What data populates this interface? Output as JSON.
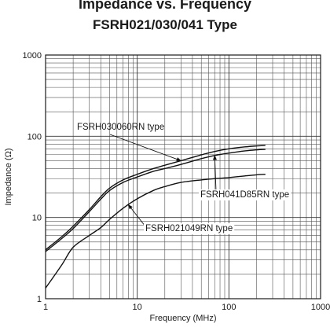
{
  "chart_data": {
    "type": "line",
    "title": "Impedance vs. Frequency",
    "subtitle": "FSRH021/030/041 Type",
    "xlabel": "Frequency (MHz)",
    "ylabel": "Impedance (Ω)",
    "x_scale": "log",
    "y_scale": "log",
    "xlim": [
      1,
      1000
    ],
    "ylim": [
      1,
      1000
    ],
    "x_ticks": [
      "1",
      "10",
      "100",
      "1000"
    ],
    "y_ticks": [
      "1",
      "10",
      "100",
      "1000"
    ],
    "grid": true,
    "series": [
      {
        "name": "FSRH030060RN type",
        "x": [
          1,
          1.5,
          2,
          3,
          4,
          5,
          7,
          10,
          15,
          20,
          30,
          50,
          70,
          100,
          150,
          200,
          250
        ],
        "y": [
          4.0,
          5.8,
          7.8,
          12.5,
          18.0,
          23.0,
          29.0,
          34.0,
          40.0,
          44.0,
          50.0,
          59.0,
          65.0,
          70.0,
          74.0,
          76.0,
          77.0
        ]
      },
      {
        "name": "FSRH041D85RN type",
        "x": [
          1,
          1.5,
          2,
          3,
          4,
          5,
          7,
          10,
          15,
          20,
          30,
          50,
          70,
          100,
          150,
          200,
          250
        ],
        "y": [
          3.8,
          5.5,
          7.3,
          11.8,
          16.8,
          21.5,
          27.0,
          31.5,
          37.0,
          40.0,
          45.0,
          53.0,
          58.0,
          62.0,
          66.0,
          68.0,
          69.0
        ]
      },
      {
        "name": "FSRH021049RN type",
        "x": [
          1,
          1.5,
          2,
          3,
          4,
          5,
          7,
          10,
          15,
          20,
          30,
          50,
          70,
          100,
          150,
          200,
          250
        ],
        "y": [
          1.35,
          2.6,
          4.3,
          6.0,
          7.5,
          9.5,
          13.0,
          17.0,
          21.5,
          24.0,
          27.0,
          29.0,
          30.0,
          31.0,
          32.5,
          33.5,
          34.0
        ]
      }
    ],
    "annotations": [
      {
        "text": "FSRH030060RN type",
        "series": 0
      },
      {
        "text": "FSRH041D85RN type",
        "series": 1
      },
      {
        "text": "FSRH021049RN type",
        "series": 2
      }
    ]
  }
}
